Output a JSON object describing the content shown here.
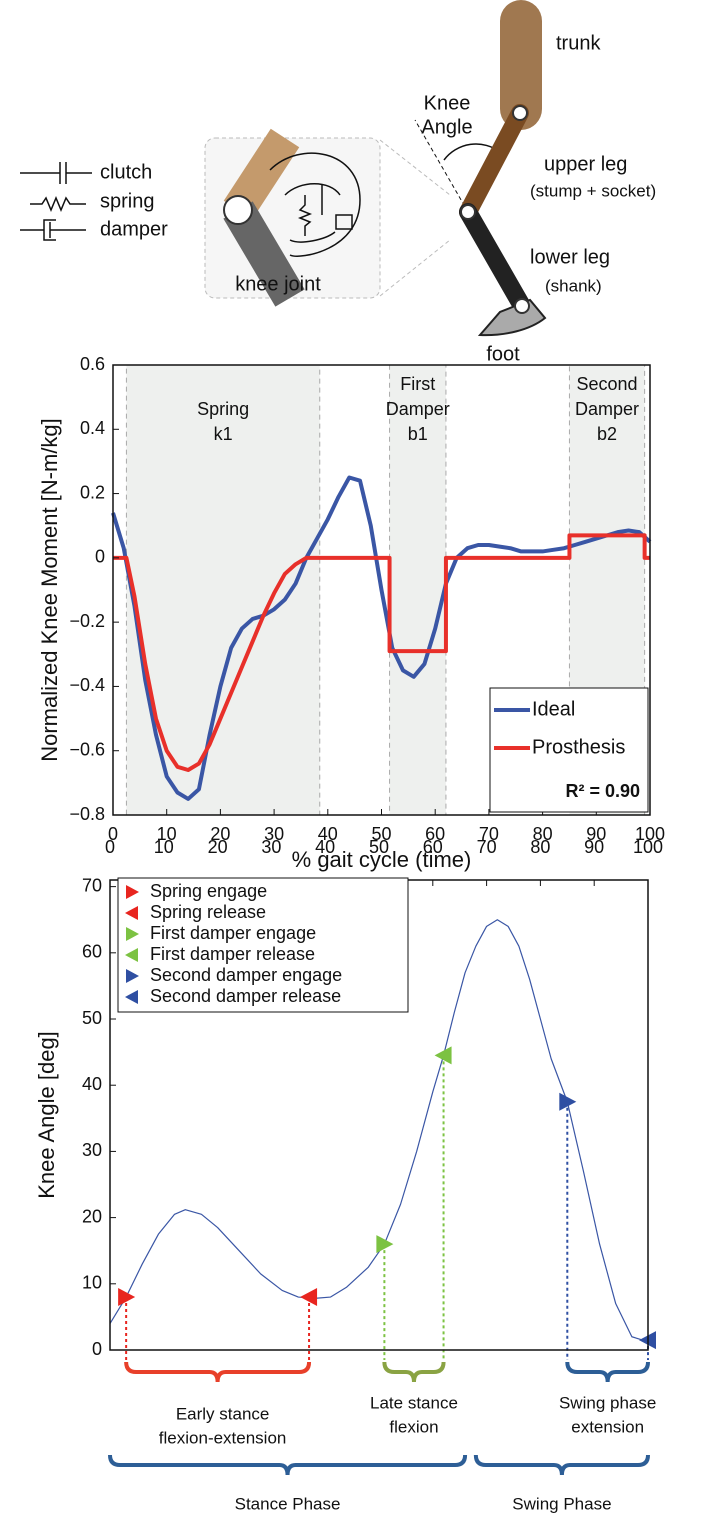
{
  "diagram": {
    "legend": [
      "clutch",
      "spring",
      "damper"
    ],
    "knee_joint": "knee joint",
    "trunk": "trunk",
    "knee_angle": [
      "Knee",
      "Angle"
    ],
    "upper_leg": [
      "upper leg",
      "(stump + socket)"
    ],
    "lower_leg": [
      "lower leg",
      "(shank)"
    ],
    "foot": "foot"
  },
  "chart_data": [
    {
      "type": "line",
      "y_label": "Normalized Knee Moment  [N-m/kg]",
      "x_label": "% gait cycle (time)",
      "xlim": [
        0,
        100
      ],
      "xticks": [
        0,
        10,
        20,
        30,
        40,
        50,
        60,
        70,
        80,
        90,
        100
      ],
      "x_axis": "bottom",
      "ylim": [
        -0.8,
        0.6
      ],
      "yticks": [
        {
          "value": -0.8,
          "label": "−0.8"
        },
        {
          "value": -0.6,
          "label": "−0.6"
        },
        {
          "value": -0.4,
          "label": "−0.4"
        },
        {
          "value": -0.2,
          "label": "−0.2"
        },
        0,
        0.2,
        0.4,
        0.6
      ],
      "regions": [
        {
          "label": [
            "Spring",
            "k1"
          ],
          "x": [
            2.5,
            38.5
          ]
        },
        {
          "label": [
            "First",
            "Damper",
            "b1"
          ],
          "x": [
            51.5,
            62
          ]
        },
        {
          "label": [
            "Second",
            "Damper",
            "b2"
          ],
          "x": [
            85,
            99
          ]
        }
      ],
      "series": [
        {
          "name": "Ideal",
          "color": "#3a56a5",
          "x": [
            0,
            2,
            4,
            6,
            8,
            10,
            12,
            14,
            16,
            18,
            20,
            22,
            24,
            26,
            28,
            30,
            32,
            34,
            36,
            38,
            40,
            42,
            44,
            46,
            48,
            50,
            52,
            54,
            56,
            58,
            60,
            62,
            64,
            66,
            68,
            70,
            72,
            74,
            76,
            78,
            80,
            82,
            84,
            86,
            88,
            90,
            92,
            94,
            96,
            98,
            100
          ],
          "values": [
            0.14,
            0.03,
            -0.15,
            -0.38,
            -0.55,
            -0.68,
            -0.73,
            -0.75,
            -0.72,
            -0.55,
            -0.4,
            -0.28,
            -0.22,
            -0.19,
            -0.18,
            -0.16,
            -0.13,
            -0.08,
            0,
            0.06,
            0.12,
            0.19,
            0.25,
            0.24,
            0.1,
            -0.1,
            -0.28,
            -0.35,
            -0.37,
            -0.33,
            -0.22,
            -0.08,
            0,
            0.03,
            0.04,
            0.04,
            0.035,
            0.03,
            0.02,
            0.02,
            0.02,
            0.025,
            0.03,
            0.04,
            0.05,
            0.06,
            0.07,
            0.08,
            0.085,
            0.08,
            0.05
          ]
        },
        {
          "name": "Prosthesis",
          "color": "#e8302a",
          "x": [
            0,
            2.5,
            4,
            6,
            8,
            10,
            12,
            14,
            16,
            18,
            20,
            22,
            24,
            26,
            28,
            30,
            32,
            34,
            36,
            38,
            51.5,
            51.5,
            62,
            62,
            85,
            85,
            99,
            99,
            100
          ],
          "values": [
            0,
            0,
            -0.12,
            -0.33,
            -0.5,
            -0.6,
            -0.65,
            -0.66,
            -0.64,
            -0.58,
            -0.5,
            -0.42,
            -0.34,
            -0.26,
            -0.18,
            -0.11,
            -0.05,
            -0.02,
            0,
            0,
            0,
            -0.29,
            -0.29,
            0,
            0,
            0.07,
            0.07,
            0,
            0
          ]
        }
      ],
      "legend": "lower right",
      "annotation": "R² = 0.90"
    },
    {
      "type": "line",
      "y_label": "Knee Angle [deg]",
      "xlim": [
        0,
        100
      ],
      "xticks": [
        0,
        10,
        20,
        30,
        40,
        50,
        60,
        70,
        80,
        90,
        100
      ],
      "x_axis": "top",
      "ylim": [
        0,
        71
      ],
      "yticks": [
        0,
        10,
        20,
        30,
        40,
        50,
        60,
        70
      ],
      "series": [
        {
          "color": "#3a56a5",
          "x": [
            0,
            3,
            6,
            9,
            12,
            14,
            17,
            20,
            24,
            28,
            32,
            35,
            38,
            41,
            44,
            48,
            51,
            54,
            57,
            60,
            62,
            64,
            66,
            68,
            70,
            72,
            74,
            76,
            78,
            80,
            82,
            85,
            88,
            91,
            94,
            97,
            99,
            100
          ],
          "values": [
            4,
            8,
            13,
            17.5,
            20.5,
            21.2,
            20.5,
            18.5,
            15,
            11.5,
            9,
            8,
            7.8,
            8,
            9.5,
            12.5,
            16,
            22,
            30,
            39,
            44.5,
            51,
            57,
            61,
            64,
            65,
            64,
            61,
            56,
            50,
            44,
            37.5,
            27,
            16,
            7,
            2,
            1.5,
            2
          ]
        }
      ],
      "markers": [
        {
          "name": "Spring engage",
          "color": "#e8251f",
          "direction": "right",
          "x": 3,
          "y": 8
        },
        {
          "name": "Spring release",
          "color": "#e8251f",
          "direction": "left",
          "x": 37,
          "y": 8
        },
        {
          "name": "First damper engage",
          "color": "#7cc242",
          "direction": "right",
          "x": 51,
          "y": 16
        },
        {
          "name": "First damper release",
          "color": "#7cc242",
          "direction": "left",
          "x": 62,
          "y": 44.5
        },
        {
          "name": "Second damper engage",
          "color": "#2f4fa2",
          "direction": "right",
          "x": 85,
          "y": 37.5
        },
        {
          "name": "Second damper release",
          "color": "#2f4fa2",
          "direction": "left",
          "x": 100,
          "y": 1.5
        }
      ],
      "legend": "upper left",
      "brackets": [
        {
          "label": [
            "Early stance",
            "flexion-extension"
          ],
          "color": "#e8402a",
          "x": [
            3,
            37
          ]
        },
        {
          "label": [
            "Late stance",
            "flexion"
          ],
          "color": "#8aa343",
          "x": [
            51,
            62
          ]
        },
        {
          "label": [
            "Swing phase",
            "extension"
          ],
          "color": "#2d5e96",
          "x": [
            85,
            100
          ]
        }
      ],
      "phases": [
        {
          "label": "Stance Phase",
          "color": "#2d5e96",
          "x": [
            0,
            66
          ]
        },
        {
          "label": "Swing Phase",
          "color": "#2d5e96",
          "x": [
            68,
            100
          ]
        }
      ]
    }
  ]
}
